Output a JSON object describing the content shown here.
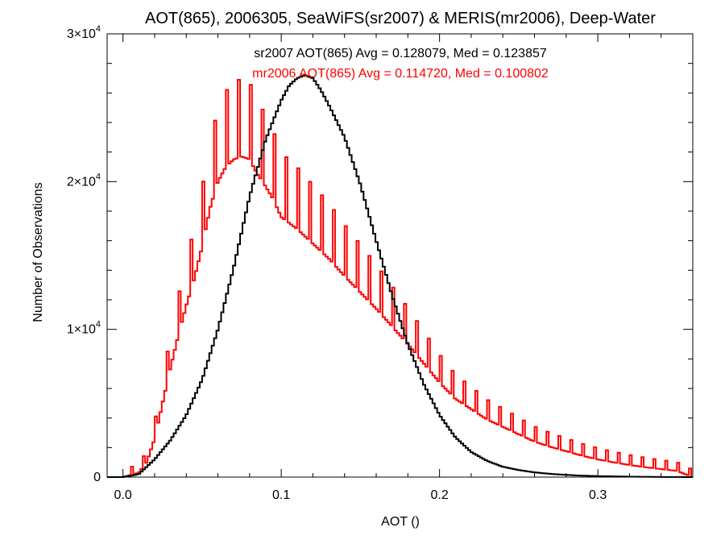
{
  "colors": {
    "black_series": "#000000",
    "red_series": "#ff0000",
    "frame": "#000000",
    "background": "#ffffff"
  },
  "chart_data": {
    "type": "line",
    "title": "AOT(865), 2006305, SeaWiFS(sr2007) & MERIS(mr2006), Deep-Water",
    "xlabel": "AOT ()",
    "ylabel": "Number of Observations",
    "xlim": [
      -0.01,
      0.36
    ],
    "ylim": [
      0,
      30000
    ],
    "x_ticks": [
      0.0,
      0.1,
      0.2,
      0.3
    ],
    "x_tick_labels": [
      "0.0",
      "0.1",
      "0.2",
      "0.3"
    ],
    "y_ticks": [
      0,
      10000,
      20000,
      30000
    ],
    "y_tick_labels": [
      {
        "base": "0",
        "exp": ""
      },
      {
        "base": "1×10",
        "exp": "4"
      },
      {
        "base": "2×10",
        "exp": "4"
      },
      {
        "base": "3×10",
        "exp": "4"
      }
    ],
    "annotations": [
      {
        "text": "sr2007 AOT(865) Avg = 0.128079, Med = 0.123857",
        "color": "#000000"
      },
      {
        "text": "mr2006 AOT(865) Avg = 0.114720, Med = 0.100802",
        "color": "#ff0000"
      }
    ],
    "series": [
      {
        "color": "#000000",
        "histogram": "step",
        "avg": 0.128079,
        "med": 0.123857,
        "x": [
          0.0,
          0.01,
          0.02,
          0.03,
          0.04,
          0.05,
          0.06,
          0.07,
          0.08,
          0.09,
          0.1,
          0.105,
          0.11,
          0.115,
          0.12,
          0.125,
          0.13,
          0.14,
          0.15,
          0.16,
          0.17,
          0.18,
          0.19,
          0.2,
          0.21,
          0.22,
          0.23,
          0.24,
          0.25,
          0.26,
          0.27,
          0.28,
          0.29,
          0.3,
          0.31,
          0.32,
          0.33,
          0.34,
          0.35,
          0.36
        ],
        "values": [
          0,
          200,
          1200,
          2500,
          4200,
          6600,
          10000,
          14200,
          19000,
          22800,
          25500,
          26500,
          27000,
          27200,
          27000,
          26200,
          25200,
          23000,
          19800,
          16000,
          12300,
          9000,
          6300,
          4200,
          2700,
          1700,
          1100,
          700,
          480,
          320,
          220,
          150,
          100,
          70,
          50,
          30,
          20,
          10,
          5,
          0
        ]
      },
      {
        "color": "#ff0000",
        "histogram": "step",
        "avg": 0.11472,
        "med": 0.100802,
        "x": [
          0.0,
          0.01,
          0.015,
          0.02,
          0.025,
          0.03,
          0.035,
          0.04,
          0.045,
          0.05,
          0.055,
          0.06,
          0.065,
          0.07,
          0.075,
          0.08,
          0.085,
          0.09,
          0.095,
          0.1,
          0.11,
          0.12,
          0.13,
          0.14,
          0.15,
          0.16,
          0.17,
          0.18,
          0.19,
          0.2,
          0.21,
          0.22,
          0.23,
          0.24,
          0.25,
          0.26,
          0.27,
          0.28,
          0.29,
          0.3,
          0.31,
          0.32,
          0.33,
          0.34,
          0.35,
          0.36
        ],
        "values": [
          0,
          300,
          1000,
          2600,
          5000,
          7400,
          9600,
          11600,
          13400,
          15600,
          18200,
          20000,
          21000,
          21500,
          21700,
          21500,
          20500,
          19700,
          18800,
          17600,
          16800,
          15800,
          14800,
          13600,
          12500,
          11400,
          10200,
          9000,
          7700,
          6400,
          5300,
          4600,
          3900,
          3400,
          2900,
          2400,
          2050,
          1750,
          1450,
          1200,
          1000,
          820,
          670,
          540,
          420,
          0
        ]
      }
    ]
  }
}
